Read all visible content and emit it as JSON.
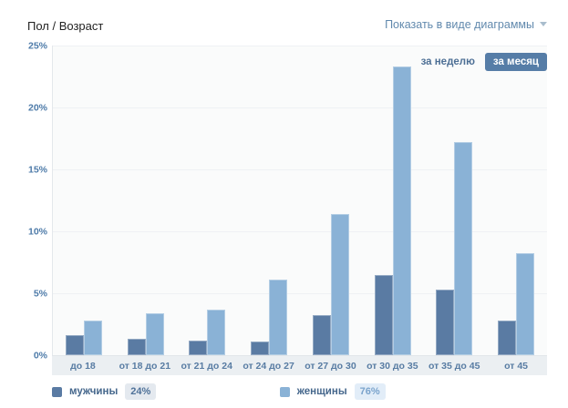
{
  "header": {
    "title": "Пол / Возраст",
    "view_link": "Показать в виде диаграммы"
  },
  "period_toggle": {
    "week_label": "за неделю",
    "month_label": "за месяц",
    "active": "за месяц"
  },
  "legend": [
    {
      "name": "мужчины",
      "value": "24%",
      "color": "#5a7ba3"
    },
    {
      "name": "женщины",
      "value": "76%",
      "color": "#8ab2d6"
    }
  ],
  "chart_data": {
    "type": "bar",
    "title": "Пол / Возраст",
    "categories": [
      "до 18",
      "от 18 до 21",
      "от 21 до 24",
      "от 24 до 27",
      "от 27 до 30",
      "от 30 до 35",
      "от 35 до 45",
      "от 45"
    ],
    "series": [
      {
        "name": "мужчины",
        "color": "#5a7ba3",
        "total": "24%",
        "values": [
          1.6,
          1.3,
          1.2,
          1.1,
          3.2,
          6.5,
          5.3,
          2.8
        ]
      },
      {
        "name": "женщины",
        "color": "#8ab2d6",
        "total": "76%",
        "values": [
          2.8,
          3.4,
          3.7,
          6.1,
          11.4,
          23.3,
          17.2,
          8.2
        ]
      }
    ],
    "xlabel": "",
    "ylabel": "",
    "ylim": [
      0,
      25
    ],
    "y_ticks": [
      "25%",
      "20%",
      "15%",
      "10%",
      "5%",
      "0%"
    ],
    "grid": true,
    "legend_position": "bottom"
  }
}
